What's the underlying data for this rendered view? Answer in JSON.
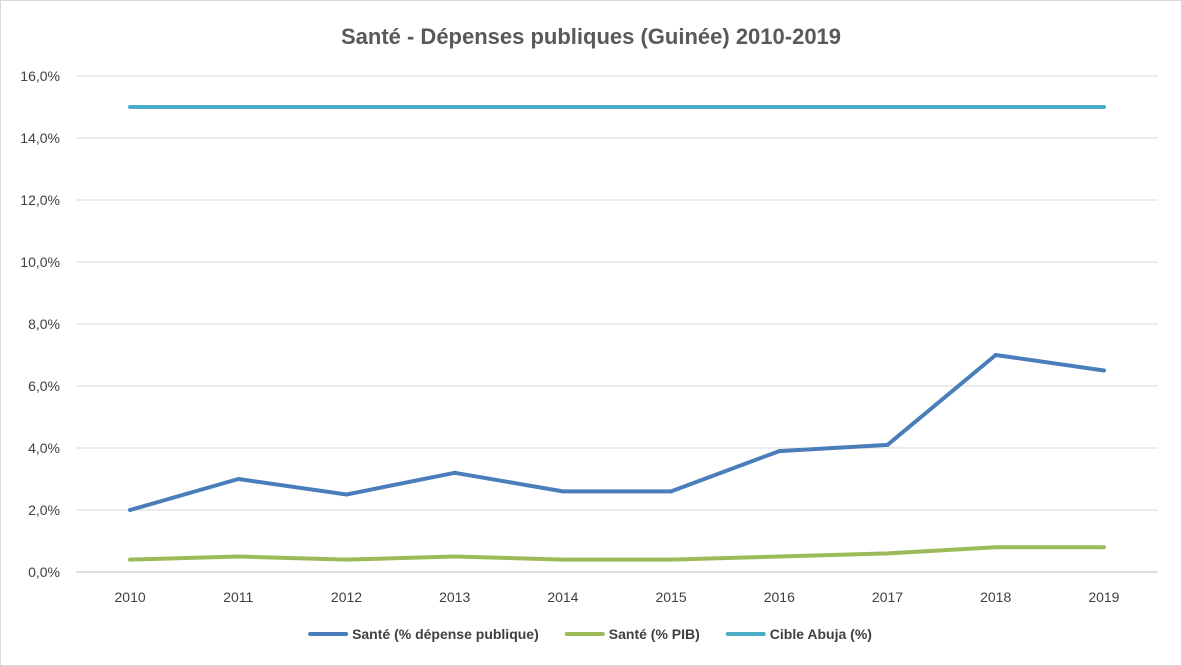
{
  "chart_data": {
    "type": "line",
    "title": "Santé - Dépenses publiques (Guinée) 2010-2019",
    "xlabel": "",
    "ylabel": "",
    "ylim": [
      0,
      16
    ],
    "y_ticks": [
      0,
      2,
      4,
      6,
      8,
      10,
      12,
      14,
      16
    ],
    "y_tick_labels": [
      "0,0%",
      "2,0%",
      "4,0%",
      "6,0%",
      "8,0%",
      "10,0%",
      "12,0%",
      "14,0%",
      "16,0%"
    ],
    "categories": [
      "2010",
      "2011",
      "2012",
      "2013",
      "2014",
      "2015",
      "2016",
      "2017",
      "2018",
      "2019"
    ],
    "grid": true,
    "legend_position": "bottom",
    "series": [
      {
        "name": "Santé (% dépense publique)",
        "color": "#4a7ebb",
        "values": [
          2.0,
          3.0,
          2.5,
          3.2,
          2.6,
          2.6,
          3.9,
          4.1,
          7.0,
          6.5
        ]
      },
      {
        "name": "Santé (% PIB)",
        "color": "#9bbb59",
        "values": [
          0.4,
          0.5,
          0.4,
          0.5,
          0.4,
          0.4,
          0.5,
          0.6,
          0.8,
          0.8
        ]
      },
      {
        "name": "Cible Abuja (%)",
        "color": "#4bacc6",
        "values": [
          15,
          15,
          15,
          15,
          15,
          15,
          15,
          15,
          15,
          15
        ]
      }
    ]
  }
}
